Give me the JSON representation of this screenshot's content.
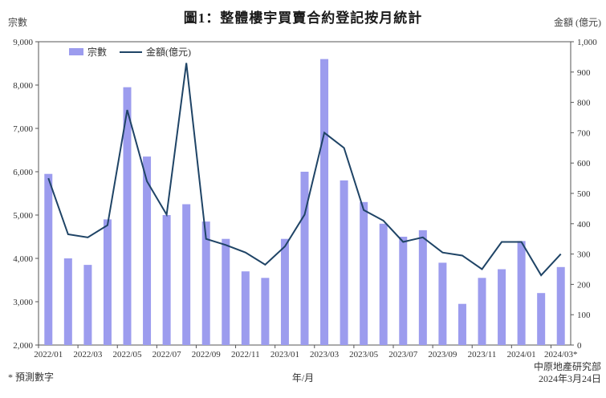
{
  "title": "圖1：整體樓宇買賣合約登記按月統計",
  "left_axis_title": "宗數",
  "right_axis_title": "金額 (億元)",
  "legend": {
    "bars": "宗數",
    "line": "金額(億元)"
  },
  "footer": {
    "note": "* 預測數字",
    "xlabel": "年/月",
    "source": "中原地產研究部",
    "date": "2024年3月24日"
  },
  "colors": {
    "bar": "#9c9cee",
    "line": "#1f4466",
    "axis": "#555555",
    "text": "#333333"
  },
  "chart_data": {
    "type": "bar+line combo",
    "title": "圖1：整體樓宇買賣合約登記按月統計",
    "xlabel": "年/月",
    "left_ylabel": "宗數",
    "right_ylabel": "金額 (億元)",
    "legend_position": "top-left inside plot",
    "grid": false,
    "categories": [
      "2022/01",
      "2022/02",
      "2022/03",
      "2022/04",
      "2022/05",
      "2022/06",
      "2022/07",
      "2022/08",
      "2022/09",
      "2022/10",
      "2022/11",
      "2022/12",
      "2023/01",
      "2023/02",
      "2023/03",
      "2023/04",
      "2023/05",
      "2023/06",
      "2023/07",
      "2023/08",
      "2023/09",
      "2023/10",
      "2023/11",
      "2023/12",
      "2024/01",
      "2024/02",
      "2024/03"
    ],
    "x_tick_labels": [
      "2022/01",
      "2022/03",
      "2022/05",
      "2022/07",
      "2022/09",
      "2022/11",
      "2023/01",
      "2023/03",
      "2023/05",
      "2023/07",
      "2023/09",
      "2023/11",
      "2024/01",
      "2024/03*"
    ],
    "series": [
      {
        "name": "宗數",
        "type": "bar",
        "axis": "left",
        "values": [
          5950,
          4000,
          3850,
          4900,
          7950,
          6350,
          5000,
          5250,
          4850,
          4450,
          3700,
          3550,
          4450,
          6000,
          8600,
          5800,
          5300,
          4800,
          4500,
          4650,
          3900,
          2950,
          3550,
          3750,
          4400,
          3200,
          3800
        ]
      },
      {
        "name": "金額(億元)",
        "type": "line",
        "axis": "right",
        "values": [
          550,
          365,
          355,
          395,
          775,
          540,
          430,
          930,
          350,
          330,
          305,
          265,
          325,
          430,
          700,
          650,
          445,
          410,
          340,
          355,
          305,
          295,
          250,
          340,
          340,
          230,
          300
        ]
      }
    ],
    "left_axis": {
      "min": 2000,
      "max": 9000,
      "step": 1000
    },
    "right_axis": {
      "min": 0,
      "max": 1000,
      "step": 100
    },
    "annotations": "2024/03 value is a forecast (* 預測數字)"
  }
}
